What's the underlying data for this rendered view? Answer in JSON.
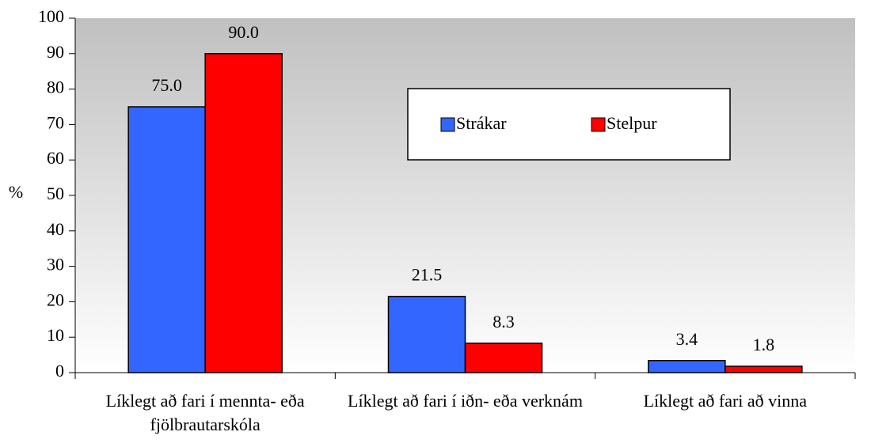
{
  "chart_data": {
    "type": "bar",
    "y_label": "%",
    "categories": [
      "Líklegt að fari í mennta- eða fjölbrautarskóla",
      "Líklegt að fari í iðn- eða verknám",
      "Líklegt að fari að vinna"
    ],
    "series": [
      {
        "name": "Strákar",
        "color": "#3366ff",
        "values": [
          75,
          21.5,
          3.4
        ],
        "value_labels": [
          "75.0",
          "21.5",
          "3.4"
        ]
      },
      {
        "name": "Stelpur",
        "color": "#ff0000",
        "values": [
          90,
          8.3,
          1.8
        ],
        "value_labels": [
          "90.0",
          "8.3",
          "1.8"
        ]
      }
    ],
    "ylim": [
      0,
      100
    ],
    "yticks": [
      0,
      10,
      20,
      30,
      40,
      50,
      60,
      70,
      80,
      90,
      100
    ],
    "grid": false,
    "legend": "top-right"
  }
}
